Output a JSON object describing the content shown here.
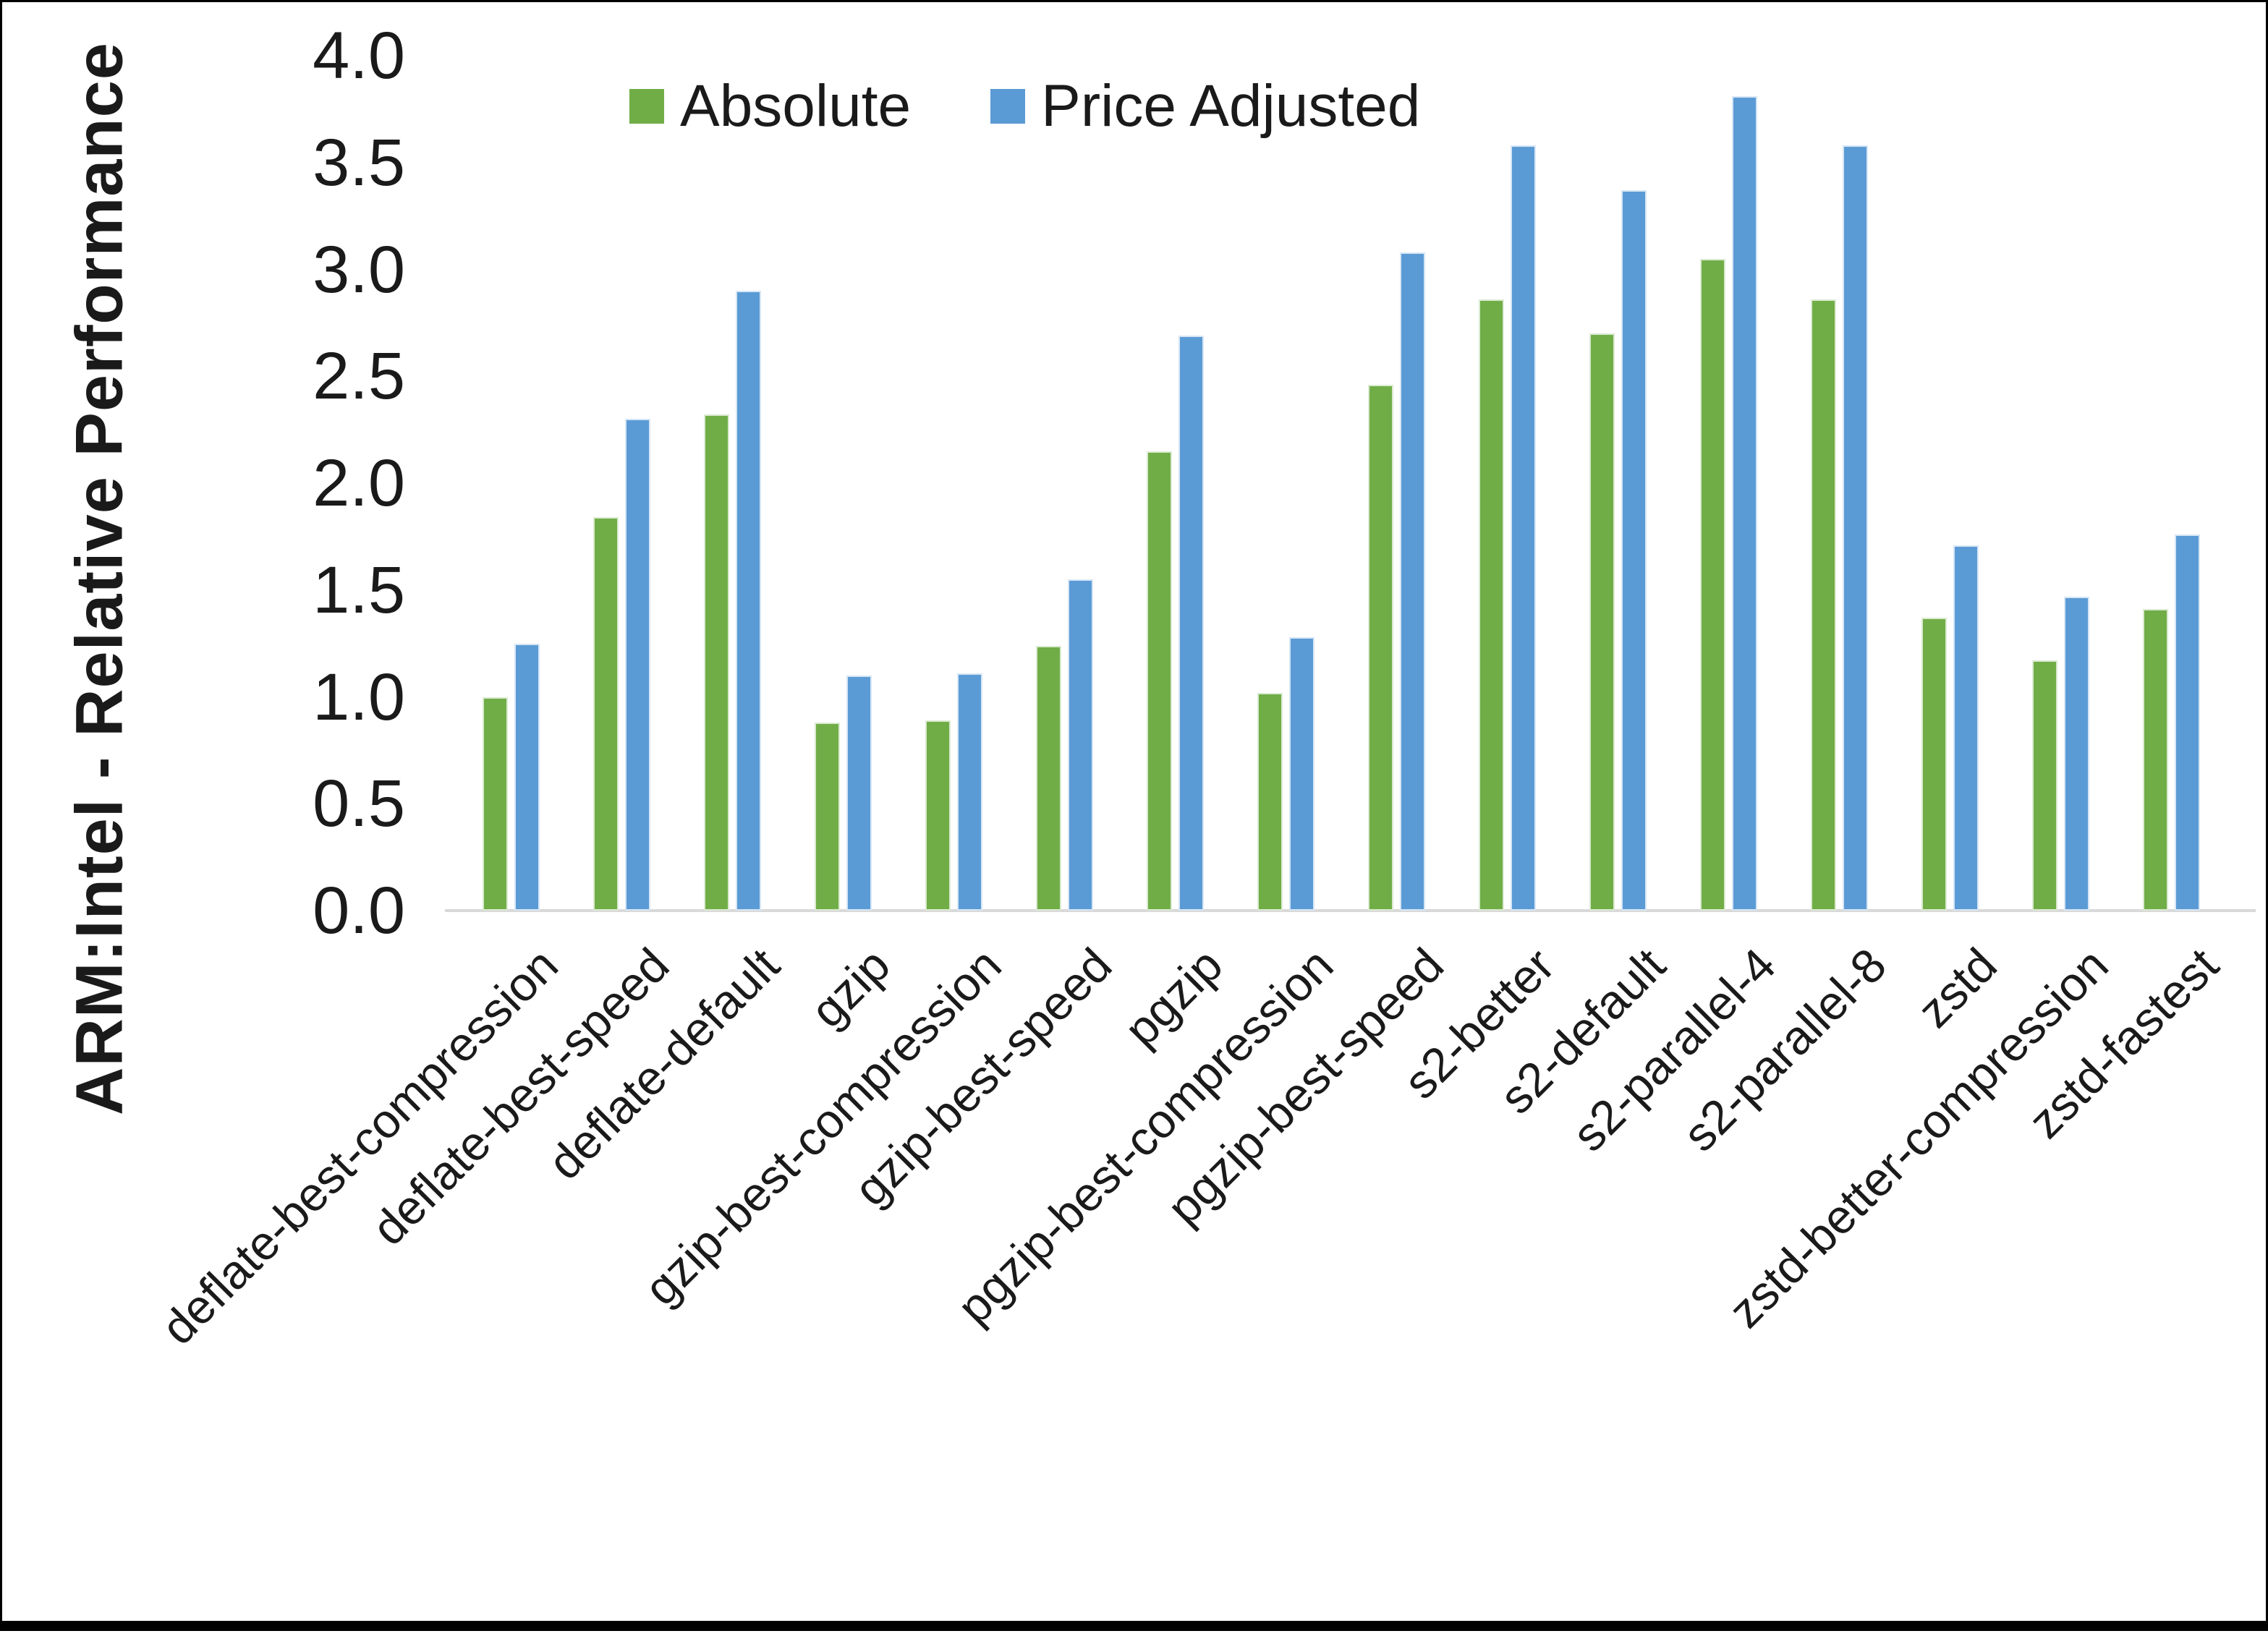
{
  "page": {
    "background": "#ffffff",
    "frame_color": "#000000"
  },
  "chart_data": {
    "type": "bar",
    "title": "",
    "ylabel": "ARM:Intel - Relative Performance",
    "xlabel": "",
    "ylim": [
      0.0,
      4.0
    ],
    "y_ticks": [
      "0.0",
      "0.5",
      "1.0",
      "1.5",
      "2.0",
      "2.5",
      "3.0",
      "3.5",
      "4.0"
    ],
    "grid": false,
    "legend_position": "top-center",
    "axis_line_color": "#d9d9d9",
    "text_color": "#1a1a1a",
    "categories": [
      "deflate-best-compression",
      "deflate-best-speed",
      "deflate-default",
      "gzip",
      "gzip-best-compression",
      "gzip-best-speed",
      "pgzip",
      "pgzip-best-compression",
      "pgzip-best-speed",
      "s2-better",
      "s2-default",
      "s2-parallel-4",
      "s2-parallel-8",
      "zstd",
      "zstd-better-compression",
      "zstd-fastest"
    ],
    "series": [
      {
        "name": "Absolute",
        "color": "#70AD47",
        "values": [
          1.0,
          1.84,
          2.32,
          0.88,
          0.89,
          1.24,
          2.15,
          1.02,
          2.46,
          2.86,
          2.7,
          3.05,
          2.86,
          1.37,
          1.17,
          1.41
        ]
      },
      {
        "name": "Price Adjusted",
        "color": "#5B9BD5",
        "values": [
          1.25,
          2.3,
          2.9,
          1.1,
          1.11,
          1.55,
          2.69,
          1.28,
          3.08,
          3.58,
          3.37,
          3.81,
          3.58,
          1.71,
          1.47,
          1.76
        ]
      }
    ]
  }
}
